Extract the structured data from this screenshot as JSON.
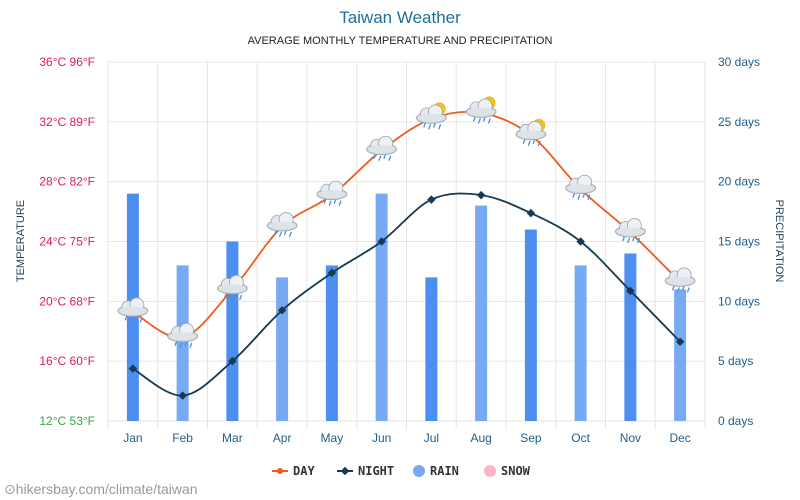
{
  "header": {
    "title": "Taiwan Weather",
    "subtitle": "AVERAGE MONTHLY TEMPERATURE AND PRECIPITATION"
  },
  "source": "hikersbay.com/climate/taiwan",
  "colors": {
    "day": "#f05a1a",
    "night": "#163a52",
    "rain": "#4d8ff0",
    "rain_light": "#78aaf3",
    "snow": "#ffb3c6",
    "left_axis": "#e0195a",
    "left_axis_bottom": "#3aa83a",
    "right_axis": "#1f5f8a",
    "grid": "#e6e6e6"
  },
  "chart_data": {
    "type": "bar+line",
    "title": "Taiwan Weather",
    "subtitle": "AVERAGE MONTHLY TEMPERATURE AND PRECIPITATION",
    "categories": [
      "Jan",
      "Feb",
      "Mar",
      "Apr",
      "May",
      "Jun",
      "Jul",
      "Aug",
      "Sep",
      "Oct",
      "Nov",
      "Dec"
    ],
    "y_left": {
      "label": "TEMPERATURE",
      "range": [
        12,
        36
      ],
      "ticks": [
        "12°C 53°F",
        "16°C 60°F",
        "20°C 68°F",
        "24°C 75°F",
        "28°C 82°F",
        "32°C 89°F",
        "36°C 96°F"
      ],
      "tick_values": [
        12,
        16,
        20,
        24,
        28,
        32,
        36
      ]
    },
    "y_right": {
      "label": "PRECIPITATION",
      "range": [
        0,
        30
      ],
      "ticks": [
        "0 days",
        "5 days",
        "10 days",
        "15 days",
        "20 days",
        "25 days",
        "30 days"
      ],
      "tick_values": [
        0,
        5,
        10,
        15,
        20,
        25,
        30
      ]
    },
    "series": [
      {
        "name": "DAY",
        "kind": "line",
        "axis": "left",
        "values": [
          19.3,
          17.6,
          20.8,
          25.0,
          27.1,
          30.1,
          32.2,
          32.6,
          31.1,
          27.5,
          24.6,
          21.3
        ]
      },
      {
        "name": "NIGHT",
        "kind": "line",
        "axis": "left",
        "values": [
          15.5,
          13.7,
          16.0,
          19.4,
          21.9,
          24.0,
          26.8,
          27.1,
          25.9,
          24.0,
          20.7,
          17.3
        ]
      },
      {
        "name": "RAIN",
        "kind": "bar",
        "axis": "right",
        "values": [
          19,
          13,
          15,
          12,
          13,
          19,
          12,
          18,
          16,
          13,
          14,
          11
        ]
      },
      {
        "name": "SNOW",
        "kind": "bar",
        "axis": "right",
        "values": [
          0,
          0,
          0,
          0,
          0,
          0,
          0,
          0,
          0,
          0,
          0,
          0
        ]
      }
    ],
    "weather_icons": [
      "rain-cloud",
      "rain-cloud",
      "rain-cloud",
      "rain-cloud",
      "rain-cloud",
      "rain-cloud",
      "sun-rain-cloud",
      "sun-rain-cloud",
      "sun-rain-cloud",
      "rain-cloud",
      "rain-cloud",
      "rain-cloud"
    ],
    "legend": [
      "DAY",
      "NIGHT",
      "RAIN",
      "SNOW"
    ],
    "legend_position": "bottom",
    "grid": true
  }
}
